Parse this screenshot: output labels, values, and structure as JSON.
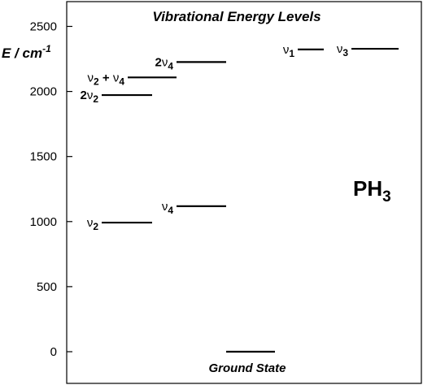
{
  "chart_data": {
    "type": "energy-level-diagram",
    "title": "Vibrational Energy Levels",
    "ylabel_main": "E / cm",
    "ylabel_exp": "-1",
    "ylim": [
      -250,
      2600
    ],
    "yticks": [
      "0",
      "500",
      "1000",
      "1500",
      "2000",
      "2500"
    ],
    "ytick_values": [
      0,
      500,
      1000,
      1500,
      2000,
      2500
    ],
    "molecule": {
      "base": "PH",
      "sub": "3"
    },
    "levels": [
      {
        "name": "ground",
        "energy": 0,
        "column": 3,
        "label_kind": "below",
        "label": "Ground State"
      },
      {
        "name": "nu2",
        "energy": 992,
        "column": 1,
        "label": {
          "coef": "",
          "sub": "2"
        }
      },
      {
        "name": "nu4",
        "energy": 1118,
        "column": 2,
        "label": {
          "coef": "",
          "sub": "4"
        }
      },
      {
        "name": "2nu2",
        "energy": 1972,
        "column": 1,
        "label": {
          "coef": "2",
          "sub": "2"
        }
      },
      {
        "name": "nu2-plus-nu4",
        "energy": 2108,
        "column": 1,
        "label": {
          "combo": true,
          "a": "2",
          "b": "4"
        }
      },
      {
        "name": "2nu4",
        "energy": 2226,
        "column": 2,
        "label": {
          "coef": "2",
          "sub": "4"
        }
      },
      {
        "name": "nu1",
        "energy": 2323,
        "column": 4,
        "label": {
          "coef": "",
          "sub": "1"
        }
      },
      {
        "name": "nu3",
        "energy": 2328,
        "column": 5,
        "label": {
          "coef": "",
          "sub": "3"
        }
      }
    ],
    "glyph": "ν",
    "plus": "+"
  }
}
